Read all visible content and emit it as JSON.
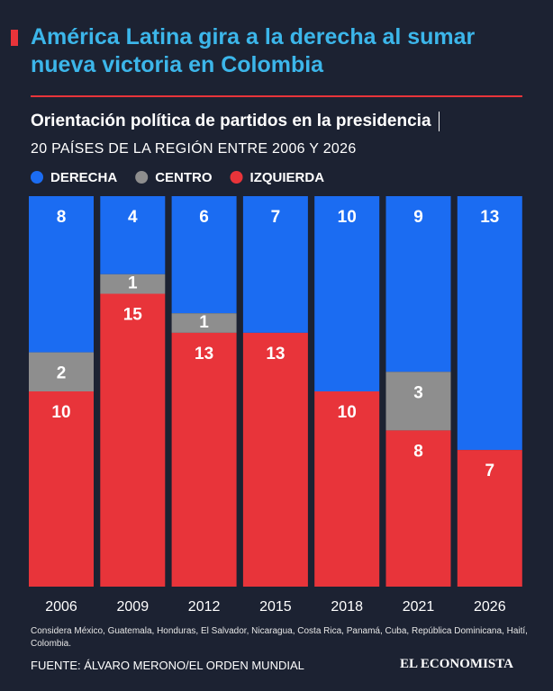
{
  "chart_data": {
    "type": "stacked-bar",
    "title": "América Latina gira a la derecha al sumar nueva victoria en Colombia",
    "subtitle": "Orientación política de partidos en la presidencia",
    "subtitle2": "20 PAÍSES DE LA REGIÓN ENTRE 2006 Y 2026",
    "categories": [
      "2006",
      "2009",
      "2012",
      "2015",
      "2018",
      "2021",
      "2026"
    ],
    "series": [
      {
        "name": "DERECHA",
        "color": "#1b6cf2",
        "values": [
          8,
          4,
          6,
          7,
          10,
          9,
          13
        ]
      },
      {
        "name": "CENTRO",
        "color": "#8e8e8e",
        "values": [
          2,
          1,
          1,
          0,
          0,
          3,
          0
        ]
      },
      {
        "name": "IZQUIERDA",
        "color": "#e8343a",
        "values": [
          10,
          15,
          13,
          13,
          10,
          8,
          7
        ]
      }
    ],
    "notes": "Considera México, Guatemala, Honduras, El Salvador, Nicaragua, Costa Rica, Panamá, Cuba, República Dominicana, Haití, Colombia.",
    "source": "FUENTE: ÁLVARO MERONO/EL ORDEN MUNDIAL",
    "logo": "EL ECONOMISTA"
  }
}
